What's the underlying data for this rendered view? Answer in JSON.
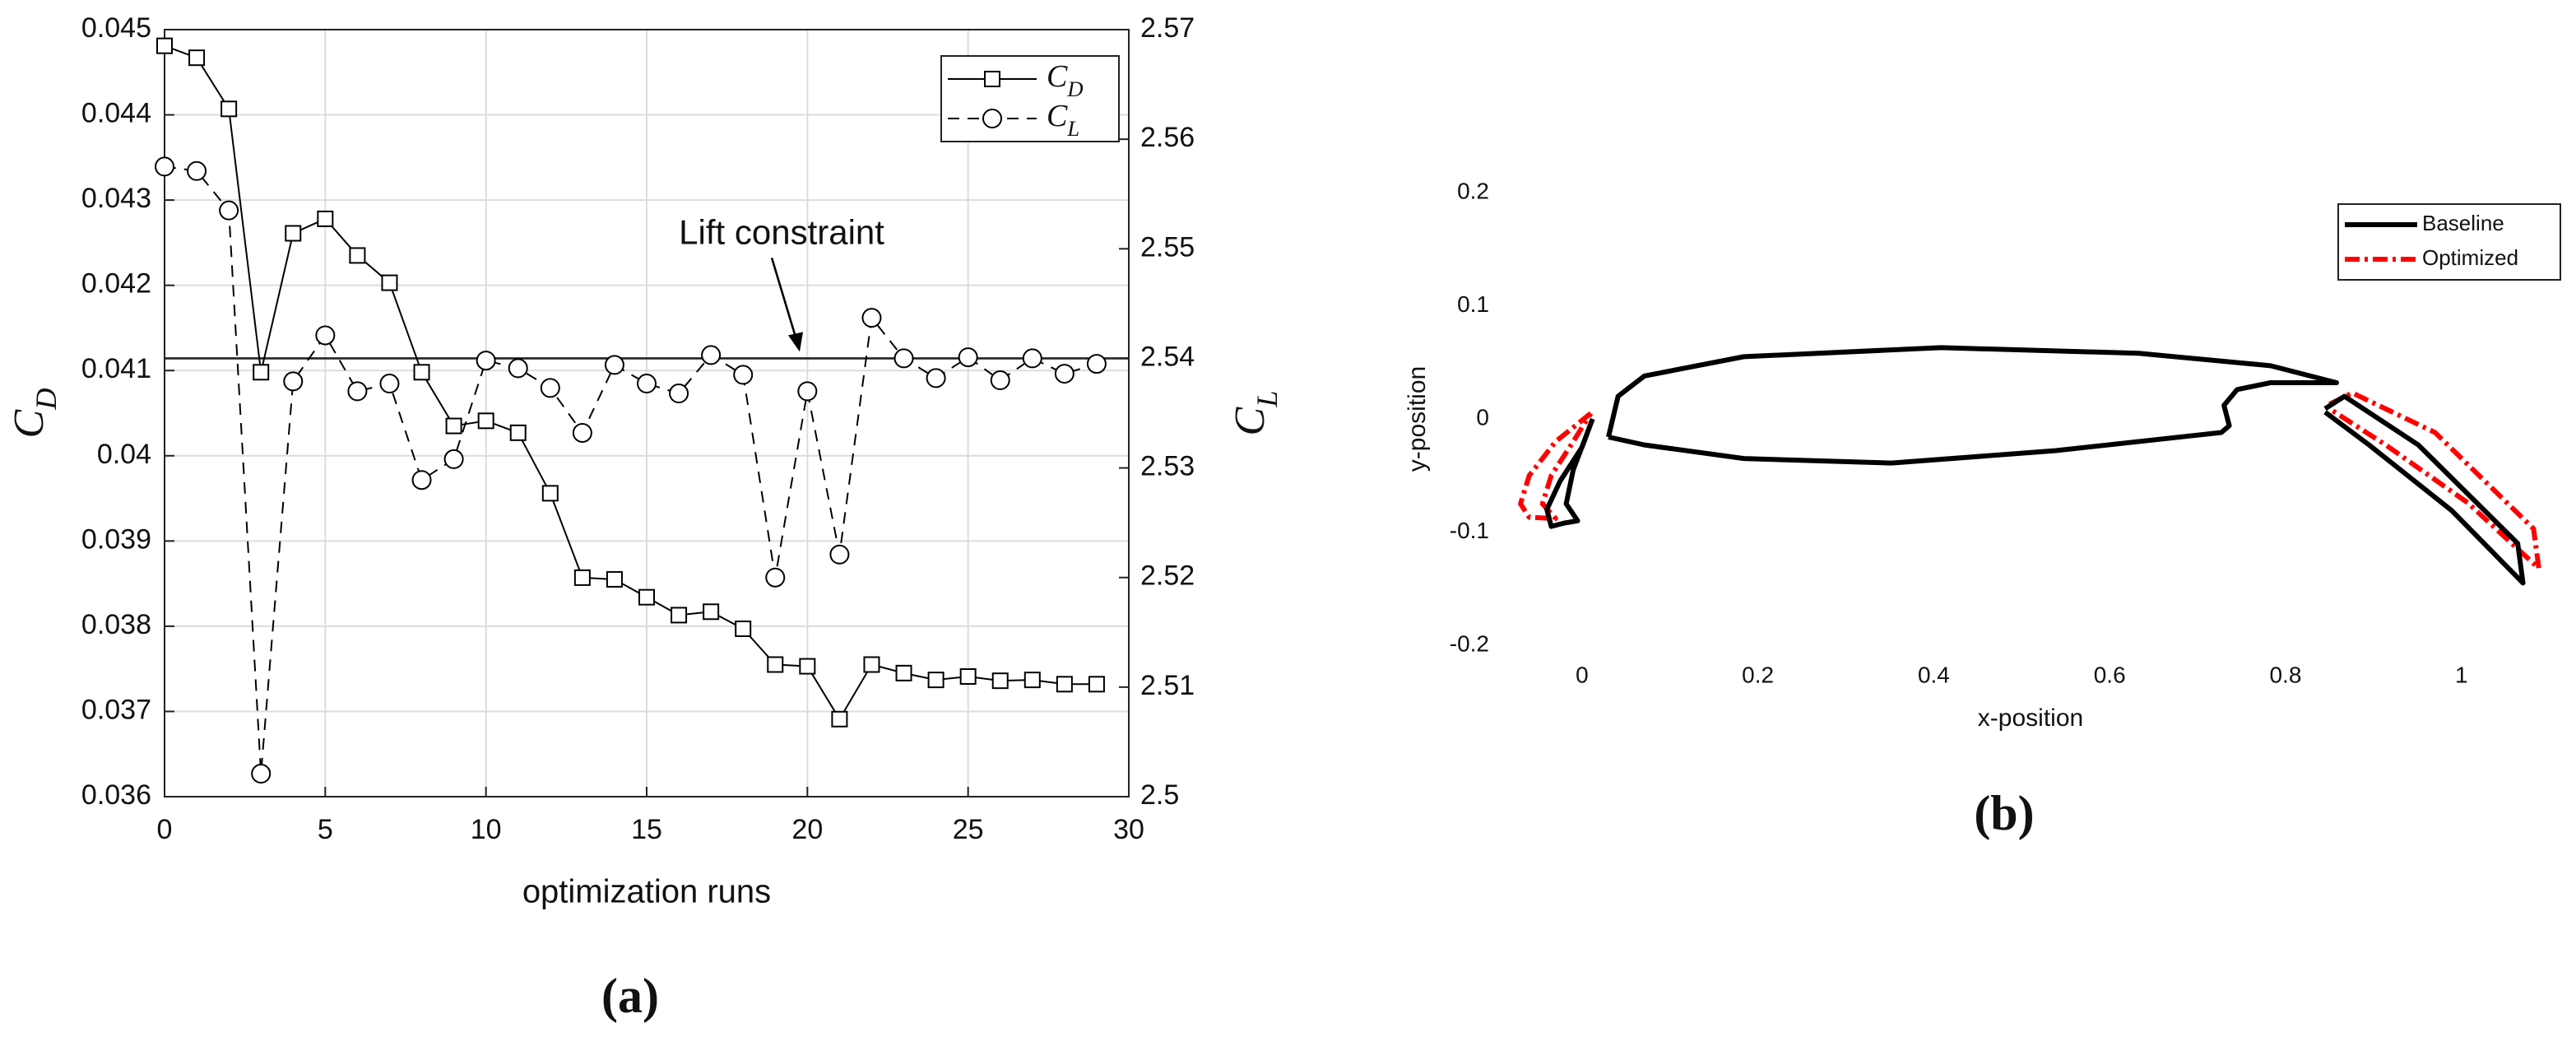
{
  "chart_data": [
    {
      "type": "line",
      "panel_label": "(a)",
      "xlabel": "optimization runs",
      "ylabel": {
        "text": "C",
        "subscript": "D"
      },
      "y2label": {
        "text": "C",
        "subscript": "L"
      },
      "x": [
        0,
        1,
        2,
        3,
        4,
        5,
        6,
        7,
        8,
        9,
        10,
        11,
        12,
        13,
        14,
        15,
        16,
        17,
        18,
        19,
        20,
        21,
        22,
        23,
        24,
        25,
        26,
        27,
        28,
        29
      ],
      "xlim": [
        0,
        30
      ],
      "xticks": [
        0,
        5,
        10,
        15,
        20,
        25,
        30
      ],
      "ylim": [
        0.036,
        0.045
      ],
      "yticks": [
        0.036,
        0.037,
        0.038,
        0.039,
        0.04,
        0.041,
        0.042,
        0.043,
        0.044,
        0.045
      ],
      "y2lim": [
        2.5,
        2.57
      ],
      "y2ticks": [
        2.5,
        2.51,
        2.52,
        2.53,
        2.54,
        2.55,
        2.56,
        2.57
      ],
      "grid": true,
      "box": true,
      "legend": "upper right",
      "series": [
        {
          "name": "C",
          "subscript": "D",
          "color": "#000000",
          "dash": "solid",
          "marker": "square",
          "values": [
            0.04481,
            0.04467,
            0.04407,
            0.04098,
            0.04261,
            0.04278,
            0.04235,
            0.04203,
            0.04098,
            0.04035,
            0.04041,
            0.04027,
            0.03956,
            0.03857,
            0.03855,
            0.03834,
            0.03813,
            0.03817,
            0.03797,
            0.03755,
            0.03753,
            0.03691,
            0.03755,
            0.03745,
            0.03737,
            0.03741,
            0.03736,
            0.03737,
            0.03732,
            0.03732
          ]
        },
        {
          "name": "C",
          "subscript": "L",
          "color": "#000000",
          "dash": "dashed",
          "marker": "circle",
          "axis": "y2",
          "values": [
            2.5575,
            2.5571,
            2.5535,
            2.5021,
            2.5379,
            2.5421,
            2.537,
            2.5377,
            2.5289,
            2.5308,
            2.5398,
            2.5391,
            2.5373,
            2.5332,
            2.5394,
            2.5377,
            2.5368,
            2.5403,
            2.5385,
            2.52,
            2.537,
            2.5221,
            2.5437,
            2.54,
            2.5382,
            2.5401,
            2.538,
            2.54,
            2.5386,
            2.5395
          ]
        }
      ],
      "annotations": [
        {
          "label": "Lift constraint",
          "value": 2.54,
          "axis": "y2"
        }
      ]
    },
    {
      "type": "line",
      "panel_label": "(b)",
      "xlabel": "x-position",
      "ylabel": "y-position",
      "xlim": [
        -0.1,
        1.12
      ],
      "xticks": [
        0,
        0.2,
        0.4,
        0.6,
        0.8,
        1
      ],
      "ylim": [
        -0.2,
        0.2
      ],
      "yticks": [
        -0.2,
        -0.1,
        0,
        0.1,
        0.2
      ],
      "grid": false,
      "box": false,
      "legend": "upper right",
      "series": [
        {
          "name": "Optimized",
          "color": "#ff0000",
          "dash": "dashdot",
          "x": [
            0.01,
            -0.03,
            -0.06,
            -0.07,
            -0.06,
            -0.03,
            -0.045,
            -0.035,
            -0.01,
            0.01,
            null,
            0.85,
            0.876,
            0.97,
            1.082,
            1.088,
            1.007,
            0.914,
            0.85
          ],
          "values": [
            0.005,
            -0.02,
            -0.05,
            -0.075,
            -0.087,
            -0.088,
            -0.075,
            -0.05,
            -0.02,
            0.005,
            null,
            0.013,
            0.023,
            -0.012,
            -0.097,
            -0.132,
            -0.074,
            -0.023,
            0.009
          ]
        },
        {
          "name": "Baseline",
          "color": "#000000",
          "dash": "solid",
          "x": [
            0.03,
            0.041,
            0.071,
            0.184,
            0.408,
            0.633,
            0.783,
            0.858,
            0.783,
            0.745,
            0.73,
            0.736,
            0.727,
            0.539,
            0.352,
            0.184,
            0.071,
            0.03,
            null,
            0.012,
            0.0,
            -0.025,
            -0.04,
            -0.035,
            -0.02,
            -0.005,
            -0.018,
            -0.01,
            0.012,
            null,
            0.845,
            0.867,
            0.951,
            1.064,
            1.07,
            0.989,
            0.895,
            0.845
          ],
          "values": [
            -0.016,
            0.02,
            0.038,
            0.055,
            0.063,
            0.058,
            0.047,
            0.032,
            0.032,
            0.026,
            0.012,
            -0.006,
            -0.012,
            -0.028,
            -0.039,
            -0.035,
            -0.023,
            -0.016,
            null,
            0.0,
            -0.025,
            -0.055,
            -0.08,
            -0.095,
            -0.092,
            -0.09,
            -0.075,
            -0.045,
            0.0,
            null,
            0.009,
            0.02,
            -0.023,
            -0.11,
            -0.145,
            -0.081,
            -0.023,
            0.006
          ]
        }
      ]
    }
  ]
}
